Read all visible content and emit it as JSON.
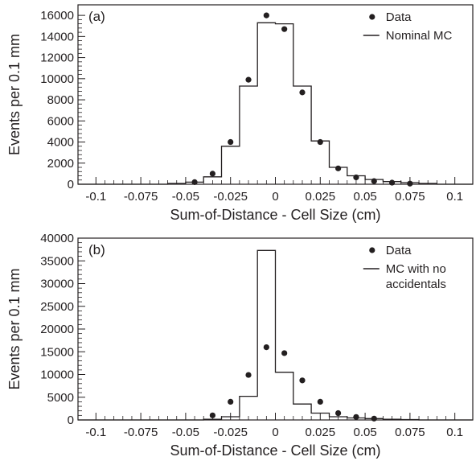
{
  "chart_data": [
    {
      "type": "histogram+scatter",
      "panel_label": "(a)",
      "xlabel": "Sum-of-Distance - Cell Size (cm)",
      "ylabel": "Events per 0.1 mm",
      "xlim": [
        -0.11,
        0.11
      ],
      "ylim": [
        0,
        17000
      ],
      "x_ticks": [
        -0.1,
        -0.075,
        -0.05,
        -0.025,
        0,
        0.025,
        0.05,
        0.075,
        0.1
      ],
      "x_tick_labels": [
        "-0.1",
        "-0.075",
        "-0.05",
        "-0.025",
        "0",
        "0.025",
        "0.05",
        "0.075",
        "0.1"
      ],
      "y_ticks": [
        0,
        2000,
        4000,
        6000,
        8000,
        10000,
        12000,
        14000,
        16000
      ],
      "y_tick_labels": [
        "0",
        "2000",
        "4000",
        "6000",
        "8000",
        "10000",
        "12000",
        "14000",
        "16000"
      ],
      "legend_placement": "top-right",
      "legend": [
        {
          "symbol": "•",
          "label": "Data",
          "lines": [
            "Data"
          ]
        },
        {
          "symbol": "—",
          "label": "Nominal MC",
          "lines": [
            "Nominal MC"
          ]
        }
      ],
      "series": [
        {
          "name": "Data",
          "kind": "points",
          "x": [
            -0.045,
            -0.035,
            -0.025,
            -0.015,
            -0.005,
            0.005,
            0.015,
            0.025,
            0.035,
            0.045,
            0.055,
            0.065,
            0.075
          ],
          "y": [
            200,
            1000,
            4000,
            9900,
            16000,
            14700,
            8700,
            4000,
            1500,
            650,
            300,
            150,
            60
          ]
        },
        {
          "name": "Nominal MC",
          "kind": "step",
          "bin_edges": [
            -0.11,
            -0.06,
            -0.05,
            -0.04,
            -0.03,
            -0.02,
            -0.01,
            0.0,
            0.01,
            0.02,
            0.03,
            0.04,
            0.05,
            0.06,
            0.07,
            0.08,
            0.09,
            0.11
          ],
          "values": [
            0,
            80,
            200,
            700,
            3600,
            9300,
            15300,
            15200,
            9300,
            4100,
            1600,
            800,
            450,
            250,
            150,
            80,
            0
          ]
        }
      ]
    },
    {
      "type": "histogram+scatter",
      "panel_label": "(b)",
      "xlabel": "Sum-of-Distance - Cell Size (cm)",
      "ylabel": "Events per 0.1 mm",
      "xlim": [
        -0.11,
        0.11
      ],
      "ylim": [
        0,
        40000
      ],
      "x_ticks": [
        -0.1,
        -0.075,
        -0.05,
        -0.025,
        0,
        0.025,
        0.05,
        0.075,
        0.1
      ],
      "x_tick_labels": [
        "-0.1",
        "-0.075",
        "-0.05",
        "-0.025",
        "0",
        "0.025",
        "0.05",
        "0.075",
        "0.1"
      ],
      "y_ticks": [
        0,
        5000,
        10000,
        15000,
        20000,
        25000,
        30000,
        35000,
        40000
      ],
      "y_tick_labels": [
        "0",
        "5000",
        "10000",
        "15000",
        "20000",
        "25000",
        "30000",
        "35000",
        "40000"
      ],
      "legend_placement": "top-right",
      "legend": [
        {
          "symbol": "•",
          "label": "Data",
          "lines": [
            "Data"
          ]
        },
        {
          "symbol": "—",
          "label": "MC with no accidentals",
          "lines": [
            "MC with no",
            "accidentals"
          ]
        }
      ],
      "series": [
        {
          "name": "Data",
          "kind": "points",
          "x": [
            -0.035,
            -0.025,
            -0.015,
            -0.005,
            0.005,
            0.015,
            0.025,
            0.035,
            0.045,
            0.055
          ],
          "y": [
            1000,
            4000,
            9900,
            16000,
            14700,
            8700,
            4000,
            1500,
            650,
            300
          ]
        },
        {
          "name": "MC with no accidentals",
          "kind": "step",
          "bin_edges": [
            -0.11,
            -0.04,
            -0.03,
            -0.02,
            -0.01,
            0.0,
            0.01,
            0.02,
            0.03,
            0.04,
            0.05,
            0.06,
            0.07,
            0.08,
            0.11
          ],
          "values": [
            0,
            150,
            700,
            5200,
            37300,
            10500,
            3500,
            1500,
            700,
            450,
            300,
            150,
            80,
            0
          ]
        }
      ]
    }
  ]
}
